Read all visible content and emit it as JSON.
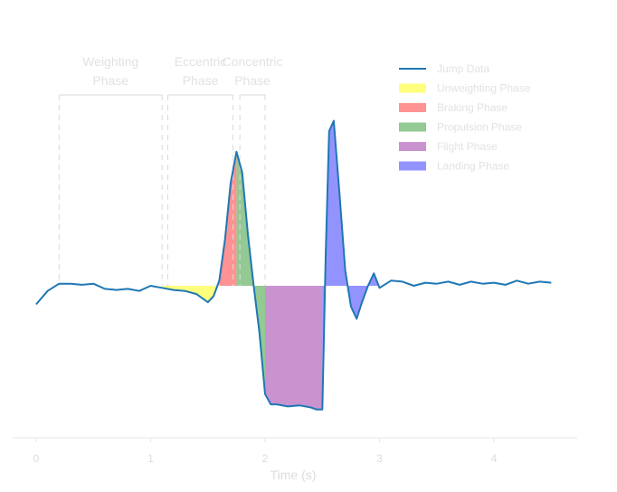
{
  "chart_data": {
    "type": "area",
    "xlabel": "Time (s)",
    "ylabel": "",
    "xlim": [
      -0.2,
      4.75
    ],
    "ylim": [
      -1.3,
      1.85
    ],
    "xticks": [
      0,
      1,
      2,
      3,
      4
    ],
    "x_tick_labels": [
      "0",
      "1",
      "2",
      "3",
      "4"
    ],
    "grid": false,
    "legend_position": "top-right",
    "line_color": "#1f77b4",
    "annotations": [
      {
        "label_lines": [
          "Weighting",
          "Phase"
        ],
        "x_start": 0.2,
        "x_end": 1.1
      },
      {
        "label_lines": [
          "Eccentric",
          "Phase"
        ],
        "x_start": 1.15,
        "x_end": 1.72
      },
      {
        "label_lines": [
          "Concentric",
          "Phase"
        ],
        "x_start": 1.78,
        "x_end": 2.0
      }
    ],
    "series": [
      {
        "name": "Jump Data",
        "color": "#1f77b4",
        "x": [
          0.0,
          0.1,
          0.2,
          0.3,
          0.4,
          0.5,
          0.6,
          0.7,
          0.8,
          0.9,
          1.0,
          1.1,
          1.2,
          1.3,
          1.4,
          1.5,
          1.55,
          1.6,
          1.65,
          1.7,
          1.75,
          1.8,
          1.85,
          1.9,
          1.95,
          2.0,
          2.05,
          2.1,
          2.2,
          2.3,
          2.4,
          2.45,
          2.5,
          2.53,
          2.56,
          2.6,
          2.65,
          2.7,
          2.75,
          2.8,
          2.85,
          2.9,
          2.95,
          3.0,
          3.1,
          3.2,
          3.3,
          3.4,
          3.5,
          3.6,
          3.7,
          3.8,
          3.9,
          4.0,
          4.1,
          4.2,
          4.3,
          4.4,
          4.5
        ],
        "y": [
          -0.18,
          -0.05,
          0.02,
          0.02,
          0.01,
          0.02,
          -0.03,
          -0.04,
          -0.03,
          -0.05,
          0.0,
          -0.02,
          -0.04,
          -0.05,
          -0.08,
          -0.16,
          -0.1,
          0.05,
          0.45,
          1.0,
          1.3,
          1.1,
          0.5,
          0.0,
          -0.45,
          -1.05,
          -1.15,
          -1.15,
          -1.17,
          -1.16,
          -1.18,
          -1.2,
          -1.2,
          0.3,
          1.5,
          1.6,
          0.9,
          0.15,
          -0.2,
          -0.32,
          -0.15,
          0.0,
          0.12,
          -0.02,
          0.05,
          0.04,
          0.0,
          0.03,
          0.02,
          0.04,
          0.01,
          0.04,
          0.02,
          0.03,
          0.01,
          0.05,
          0.02,
          0.04,
          0.03
        ]
      },
      {
        "name": "Unweighting Phase",
        "color": "#ffff66",
        "x_start": 1.1,
        "x_end": 1.6
      },
      {
        "name": "Braking Phase",
        "color": "#ff7f7f",
        "x_start": 1.6,
        "x_end": 1.75
      },
      {
        "name": "Propulsion Phase",
        "color": "#80c080",
        "x_start": 1.75,
        "x_end": 2.0
      },
      {
        "name": "Flight Phase",
        "color": "#c080c8",
        "x_start": 2.0,
        "x_end": 2.5
      },
      {
        "name": "Landing Phase",
        "color": "#8080ff",
        "x_start": 2.5,
        "x_end": 3.0
      }
    ]
  }
}
